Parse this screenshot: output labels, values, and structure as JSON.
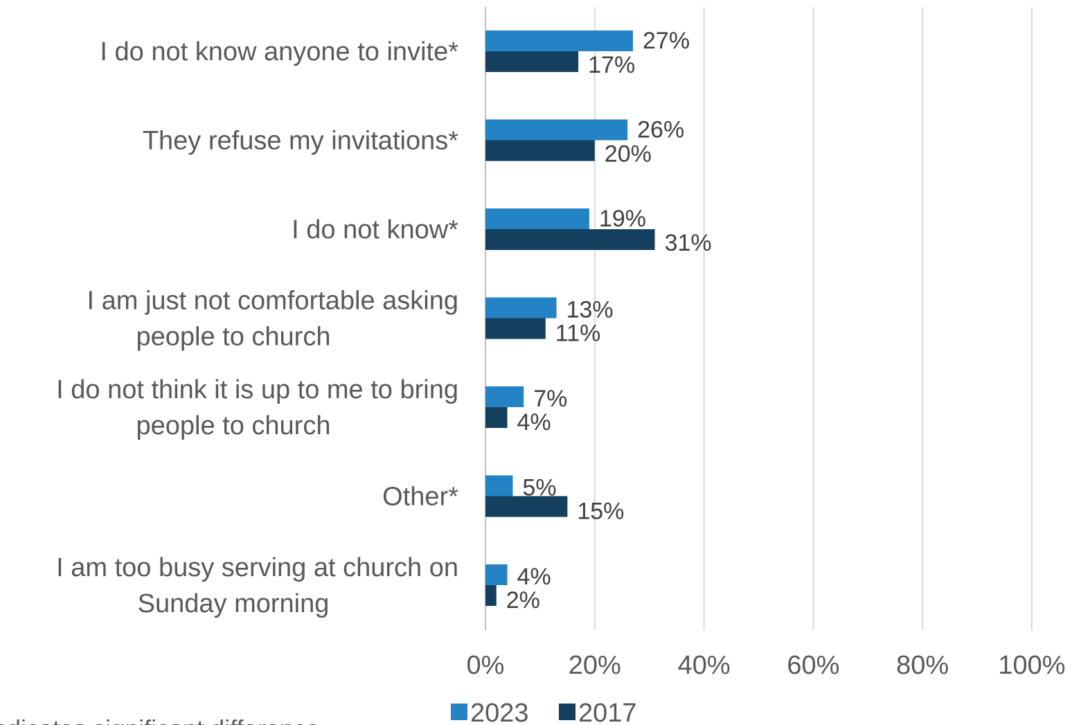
{
  "chart_data": {
    "type": "bar",
    "orientation": "horizontal",
    "categories": [
      [
        "I do not know anyone to invite*"
      ],
      [
        "They refuse my invitations*"
      ],
      [
        "I do not know*"
      ],
      [
        "I am just not comfortable asking",
        "people to church"
      ],
      [
        "I do not think it is up to me to bring",
        "people to church"
      ],
      [
        "Other*"
      ],
      [
        "I am too busy serving at church on",
        "Sunday morning"
      ]
    ],
    "series": [
      {
        "name": "2023",
        "values": [
          27,
          26,
          19,
          13,
          7,
          5,
          4
        ],
        "color": "#2383C4"
      },
      {
        "name": "2017",
        "values": [
          17,
          20,
          31,
          11,
          4,
          15,
          2
        ],
        "color": "#143F5F"
      }
    ],
    "data_labels": {
      "2023": [
        "27%",
        "26%",
        "19%",
        "13%",
        "7%",
        "5%",
        "4%"
      ],
      "2017": [
        "17%",
        "20%",
        "31%",
        "11%",
        "4%",
        "15%",
        "2%"
      ]
    },
    "xlim": [
      0,
      100
    ],
    "x_ticks": [
      0,
      20,
      40,
      60,
      80,
      100
    ],
    "x_tick_labels": [
      "0%",
      "20%",
      "40%",
      "60%",
      "80%",
      "100%"
    ],
    "grid": "vertical",
    "legend_position": "bottom",
    "footnote": "*Indicates significant difference"
  }
}
